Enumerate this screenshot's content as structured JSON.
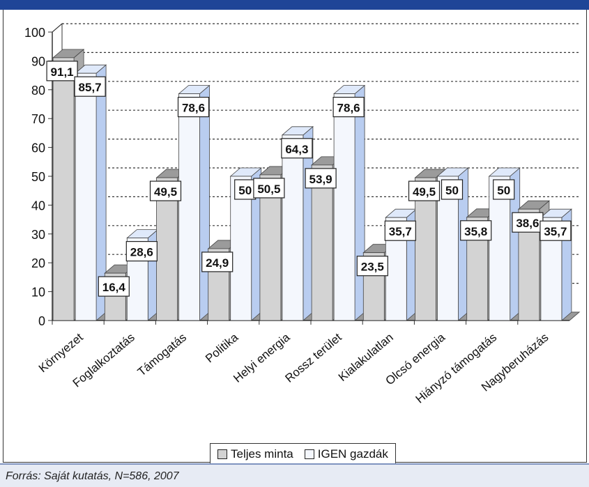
{
  "title": "",
  "source_note": "Forrás: Saját kutatás, N=586, 2007",
  "colors": {
    "title_bar": "#1f4597",
    "series_full_front": "#d3d3d3",
    "series_full_side": "#a8a8a8",
    "series_full_top": "#9b9b9b",
    "series_igen_front": "#f4f7fd",
    "series_igen_side": "#b9cdf0",
    "series_igen_top": "#dfe9fa"
  },
  "chart_data": {
    "type": "bar",
    "style": "3d-clustered",
    "categories": [
      "Környezet",
      "Foglalkoztatás",
      "Támogatás",
      "Politika",
      "Helyi energia",
      "Rossz terület",
      "Kialakulatlan",
      "Olcsó energia",
      "Hiányzó támogatás",
      "Nagyberuházás"
    ],
    "series": [
      {
        "name": "Teljes minta",
        "values": [
          91.1,
          16.4,
          49.5,
          24.9,
          50.5,
          53.9,
          23.5,
          49.5,
          35.8,
          38.6
        ],
        "labels": [
          "91,1",
          "16,4",
          "49,5",
          "24,9",
          "50,5",
          "53,9",
          "23,5",
          "49,5",
          "35,8",
          "38,6"
        ]
      },
      {
        "name": "IGEN gazdák",
        "values": [
          85.7,
          28.6,
          78.6,
          50,
          64.3,
          78.6,
          35.7,
          50,
          50,
          35.7
        ],
        "labels": [
          "85,7",
          "28,6",
          "78,6",
          "50",
          "64,3",
          "78,6",
          "35,7",
          "50",
          "50",
          "35,7"
        ]
      }
    ],
    "y_ticks": [
      "0",
      "10",
      "20",
      "30",
      "40",
      "50",
      "60",
      "70",
      "80",
      "90",
      "100"
    ],
    "ylim": [
      0,
      100
    ],
    "grid": "dashed-horizontal",
    "legend_position": "bottom-center",
    "xlabel": "",
    "ylabel": ""
  }
}
